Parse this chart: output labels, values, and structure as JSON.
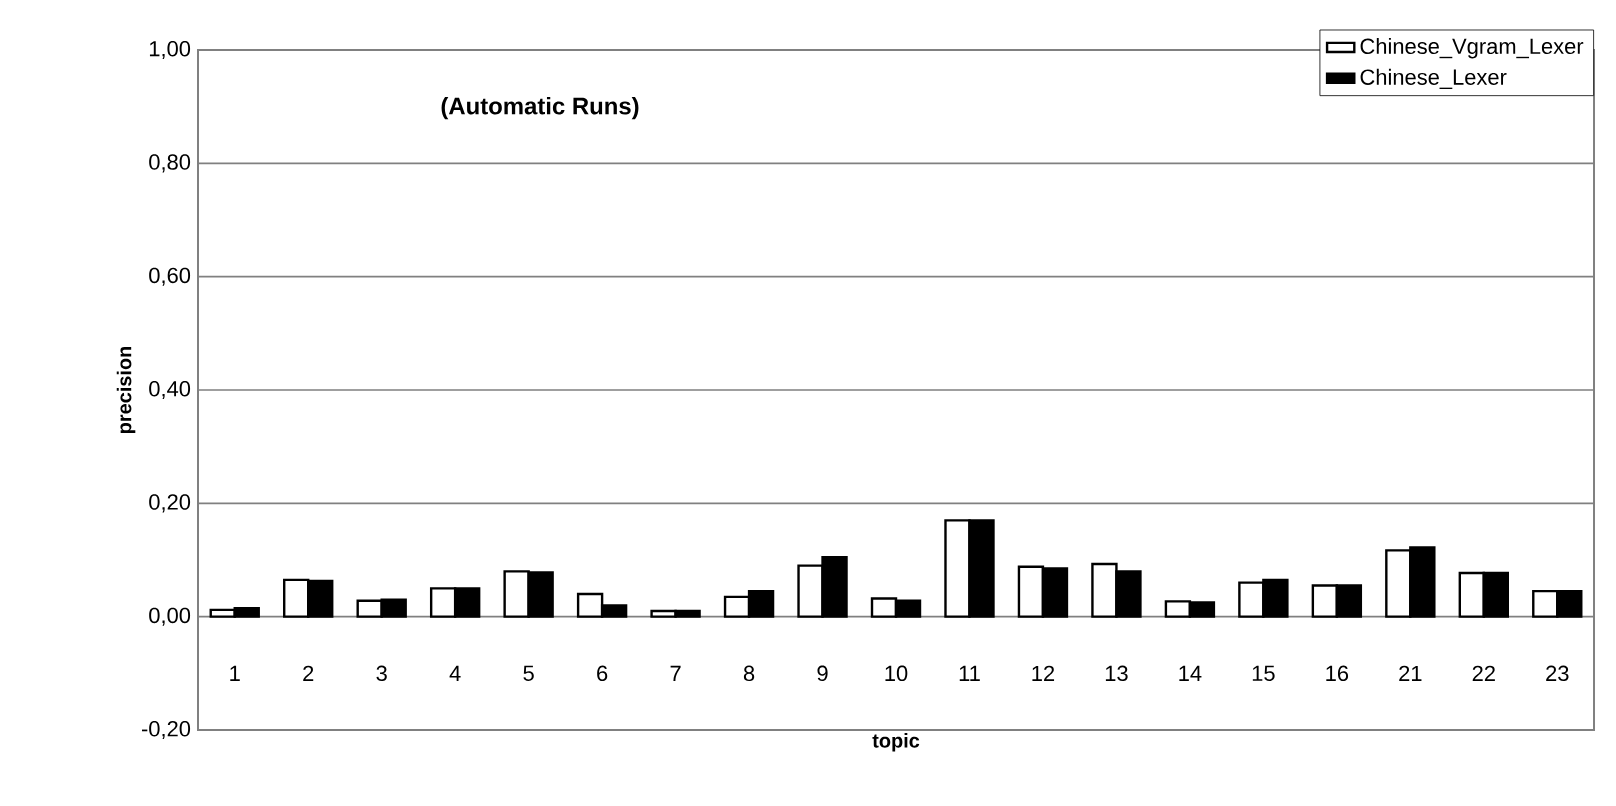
{
  "chart_data": {
    "type": "bar",
    "title": "(Automatic Runs)",
    "xlabel": "topic",
    "ylabel": "precision",
    "categories": [
      "1",
      "2",
      "3",
      "4",
      "5",
      "6",
      "7",
      "8",
      "9",
      "10",
      "11",
      "12",
      "13",
      "14",
      "15",
      "16",
      "21",
      "22",
      "23"
    ],
    "series": [
      {
        "name": "Chinese_Vgram_Lexer",
        "color": "#ffffff",
        "values": [
          0.012,
          0.065,
          0.028,
          0.05,
          0.08,
          0.04,
          0.01,
          0.035,
          0.09,
          0.032,
          0.17,
          0.088,
          0.093,
          0.027,
          0.06,
          0.055,
          0.117,
          0.077,
          0.045
        ]
      },
      {
        "name": "Chinese_Lexer",
        "color": "#000000",
        "values": [
          0.015,
          0.063,
          0.03,
          0.05,
          0.078,
          0.02,
          0.01,
          0.045,
          0.105,
          0.028,
          0.17,
          0.085,
          0.08,
          0.025,
          0.065,
          0.055,
          0.122,
          0.077,
          0.045
        ]
      }
    ],
    "ylim": [
      -0.2,
      1.0
    ],
    "yticks": [
      {
        "value": -0.2,
        "label": "-0,20"
      },
      {
        "value": 0,
        "label": "0,00"
      },
      {
        "value": 0.2,
        "label": "0,20"
      },
      {
        "value": 0.4,
        "label": "0,40"
      },
      {
        "value": 0.6,
        "label": "0,60"
      },
      {
        "value": 0.8,
        "label": "0,80"
      },
      {
        "value": 1.0,
        "label": "1,00"
      }
    ],
    "grid": "y",
    "legend": "top right"
  }
}
